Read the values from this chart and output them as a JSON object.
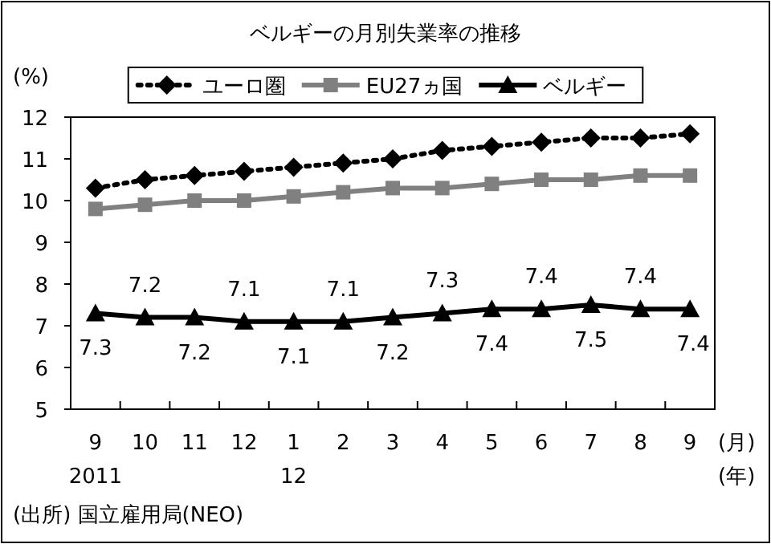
{
  "chart_data": {
    "type": "line",
    "title": "ベルギーの月別失業率の推移",
    "ylabel": "(%)",
    "xlabel": "(月)",
    "categories": [
      "9",
      "10",
      "11",
      "12",
      "1",
      "2",
      "3",
      "4",
      "5",
      "6",
      "7",
      "8",
      "9"
    ],
    "ylim": [
      5,
      12
    ],
    "yticks": [
      5,
      6,
      7,
      8,
      9,
      10,
      11,
      12
    ],
    "legend": "top",
    "grid": false,
    "series": [
      {
        "name": "ユーロ圏",
        "color": "#000000",
        "marker": "diamond",
        "line_style": "dotted",
        "values": [
          10.3,
          10.5,
          10.6,
          10.7,
          10.8,
          10.9,
          11.0,
          11.2,
          11.3,
          11.4,
          11.5,
          11.5,
          11.6
        ]
      },
      {
        "name": "EU27ヵ国",
        "color": "#808080",
        "marker": "square",
        "line_style": "solid",
        "values": [
          9.8,
          9.9,
          10.0,
          10.0,
          10.1,
          10.2,
          10.3,
          10.3,
          10.4,
          10.5,
          10.5,
          10.6,
          10.6
        ]
      },
      {
        "name": "ベルギー",
        "color": "#000000",
        "marker": "triangle",
        "line_style": "solid",
        "values": [
          7.3,
          7.2,
          7.2,
          7.1,
          7.1,
          7.1,
          7.2,
          7.3,
          7.4,
          7.4,
          7.5,
          7.4,
          7.4
        ],
        "value_labels": [
          "7.3",
          "7.2",
          "7.2",
          "7.1",
          "7.1",
          "7.1",
          "7.2",
          "7.3",
          "7.4",
          "7.4",
          "7.5",
          "7.4",
          "7.4"
        ]
      }
    ],
    "annotations": [
      "2011",
      "12",
      "(年)",
      "(出所) 国立雇用局(NEO)"
    ]
  }
}
